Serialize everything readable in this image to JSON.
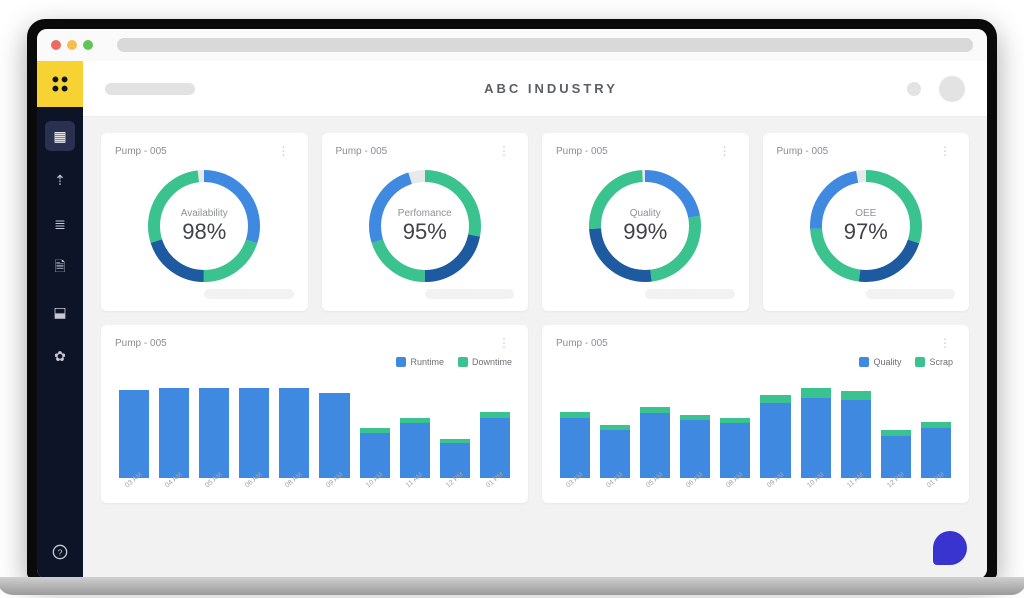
{
  "chrome": {
    "dot_colors": [
      "#ed6a5e",
      "#f5bf4f",
      "#61c554"
    ]
  },
  "sidebar": {
    "logo_bg": "#f6d233",
    "items": [
      {
        "name": "dashboard-icon",
        "glyph": "▦",
        "active": true
      },
      {
        "name": "analytics-icon",
        "glyph": "⇡",
        "active": false
      },
      {
        "name": "devices-icon",
        "glyph": "≣",
        "active": false
      },
      {
        "name": "reports-icon",
        "glyph": "🗎",
        "active": false
      },
      {
        "name": "export-icon",
        "glyph": "⬓",
        "active": false
      },
      {
        "name": "settings-icon",
        "glyph": "✿",
        "active": false
      }
    ],
    "help_glyph": "?"
  },
  "header": {
    "title": "ABC INDUSTRY"
  },
  "palette": {
    "blue": "#3f8ae0",
    "green": "#3ac28f",
    "track": "#e7e9ec"
  },
  "kpi_cards": [
    {
      "title": "Pump - 005",
      "label": "Availability",
      "value": 98,
      "segments": [
        {
          "color": "#3f8ae0",
          "frac": 0.3
        },
        {
          "color": "#3ac28f",
          "frac": 0.2
        },
        {
          "color": "#1e5aa0",
          "frac": 0.2
        },
        {
          "color": "#3ac28f",
          "frac": 0.28
        }
      ]
    },
    {
      "title": "Pump - 005",
      "label": "Perfomance",
      "value": 95,
      "segments": [
        {
          "color": "#3ac28f",
          "frac": 0.28
        },
        {
          "color": "#1e5aa0",
          "frac": 0.22
        },
        {
          "color": "#3ac28f",
          "frac": 0.2
        },
        {
          "color": "#3f8ae0",
          "frac": 0.25
        }
      ]
    },
    {
      "title": "Pump - 005",
      "label": "Quality",
      "value": 99,
      "segments": [
        {
          "color": "#3f8ae0",
          "frac": 0.22
        },
        {
          "color": "#3ac28f",
          "frac": 0.26
        },
        {
          "color": "#1e5aa0",
          "frac": 0.26
        },
        {
          "color": "#3ac28f",
          "frac": 0.25
        }
      ]
    },
    {
      "title": "Pump - 005",
      "label": "OEE",
      "value": 97,
      "segments": [
        {
          "color": "#3ac28f",
          "frac": 0.3
        },
        {
          "color": "#1e5aa0",
          "frac": 0.22
        },
        {
          "color": "#3ac28f",
          "frac": 0.22
        },
        {
          "color": "#3f8ae0",
          "frac": 0.23
        }
      ]
    }
  ],
  "bar_cards": [
    {
      "title": "Pump - 005",
      "legend": [
        {
          "label": "Runtime",
          "color": "#3f8ae0"
        },
        {
          "label": "Downtime",
          "color": "#3ac28f"
        }
      ],
      "ylim": [
        0,
        100
      ],
      "categories": [
        "03 AM",
        "04 AM",
        "05 AM",
        "06 AM",
        "08 AM",
        "09 AM",
        "10 AM",
        "11 AM",
        "12 PM",
        "01 PM"
      ],
      "series": {
        "primary": [
          88,
          90,
          90,
          90,
          90,
          85,
          45,
          55,
          35,
          60
        ],
        "secondary": [
          0,
          0,
          0,
          0,
          0,
          0,
          5,
          5,
          4,
          6
        ]
      }
    },
    {
      "title": "Pump - 005",
      "legend": [
        {
          "label": "Quality",
          "color": "#3f8ae0"
        },
        {
          "label": "Scrap",
          "color": "#3ac28f"
        }
      ],
      "ylim": [
        0,
        100
      ],
      "categories": [
        "03 AM",
        "04 AM",
        "05 AM",
        "06 AM",
        "08 AM",
        "09 AM",
        "10 AM",
        "11 AM",
        "12 PM",
        "01 PM"
      ],
      "series": {
        "primary": [
          60,
          48,
          65,
          58,
          55,
          75,
          80,
          78,
          42,
          50
        ],
        "secondary": [
          6,
          5,
          6,
          5,
          5,
          8,
          10,
          9,
          6,
          6
        ]
      }
    }
  ],
  "donut_style": {
    "radius": 50,
    "stroke": 12,
    "label_fontsize": 10,
    "value_fontsize": 22
  }
}
